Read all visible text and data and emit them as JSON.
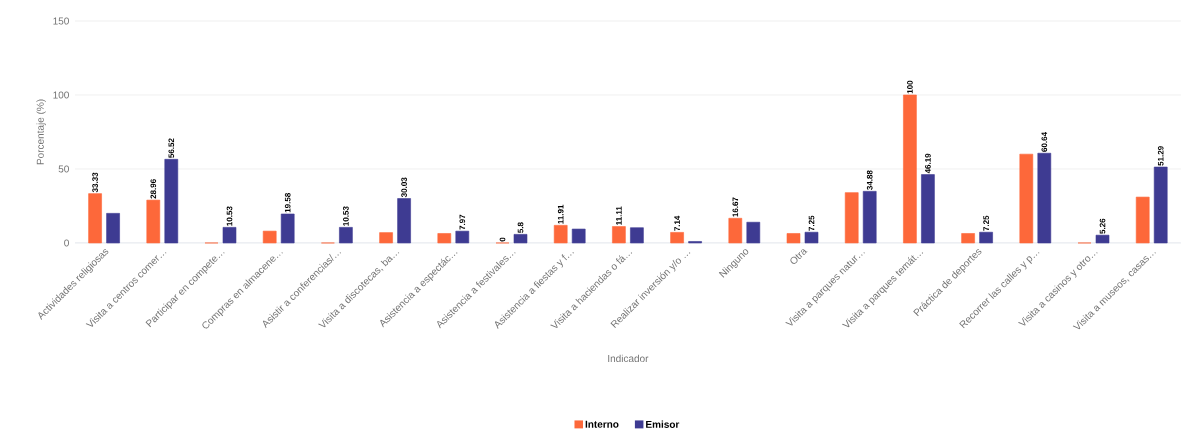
{
  "chart_data": {
    "type": "bar",
    "xlabel": "Indicador",
    "ylabel": "Porcentaje (%)",
    "categories": [
      "Actividades religiosas",
      "Visita a centros comer…",
      "Participar en compete…",
      "Compras en almacene…",
      "Asistir a conferencias/…",
      "Visita a discotecas, ba…",
      "Asistencia a espectác…",
      "Asistencia a festivales…",
      "Asistencia a fiestas y f…",
      "Visita a haciendas o fá…",
      "Realizar inversión y/o …",
      "Ninguno",
      "Otra",
      "Visita a parques natur…",
      "Visita a parques temát…",
      "Práctica de deportes",
      "Recorrer las calles y p…",
      "Visita a casinos y otro…",
      "Visita a museos, casas…"
    ],
    "series": [
      {
        "name": "Interno",
        "color": "#fd683a",
        "values": [
          33.33,
          28.96,
          0,
          8,
          0,
          7,
          6.4,
          0,
          11.91,
          11.11,
          7.14,
          16.67,
          6.4,
          34,
          100,
          6.4,
          60,
          0,
          31
        ],
        "value_labels": [
          "33.33",
          "28.96",
          null,
          null,
          null,
          null,
          null,
          "0",
          "11.91",
          "11.11",
          "7.14",
          "16.67",
          null,
          null,
          "100",
          null,
          null,
          null,
          null
        ]
      },
      {
        "name": "Emisor",
        "color": "#3e3b92",
        "values": [
          20,
          56.52,
          10.53,
          19.58,
          10.53,
          30.03,
          7.97,
          5.8,
          9.4,
          10.3,
          1,
          14,
          7.25,
          34.88,
          46.19,
          7.25,
          60.64,
          5.26,
          51.29
        ],
        "value_labels": [
          null,
          "56.52",
          "10.53",
          "19.58",
          "10.53",
          "30.03",
          "7.97",
          "5.8",
          null,
          null,
          null,
          null,
          "7.25",
          "34.88",
          "46.19",
          "7.25",
          "60.64",
          "5.26",
          "51.29"
        ]
      }
    ],
    "ylim": [
      0,
      150
    ],
    "yticks": [
      0,
      50,
      100,
      150
    ],
    "grid": "y",
    "legend": "bottom"
  }
}
